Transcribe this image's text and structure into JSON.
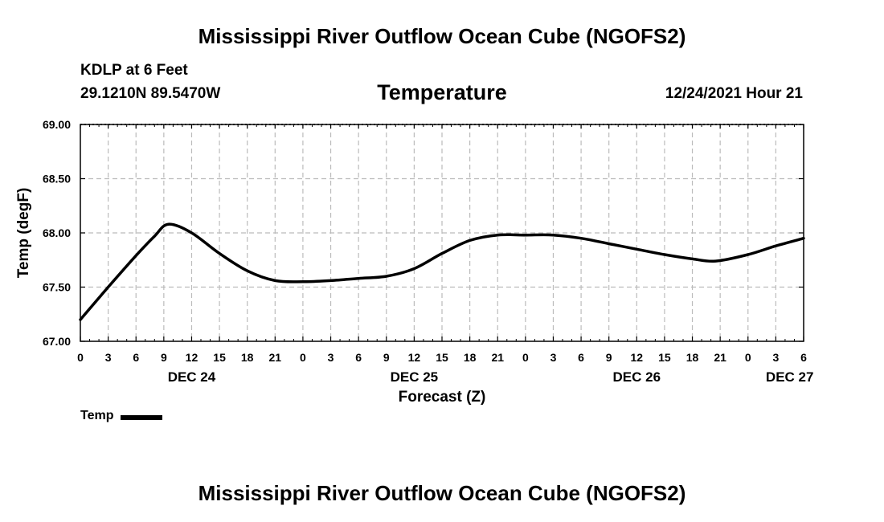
{
  "header": {
    "title": "Mississippi River Outflow Ocean Cube (NGOFS2)",
    "station": "KDLP at 6 Feet",
    "coords": "29.1210N  89.5470W",
    "subtitle": "Temperature",
    "datetime": "12/24/2021 Hour 21"
  },
  "footer": {
    "title": "Mississippi River Outflow Ocean Cube (NGOFS2)"
  },
  "legend": {
    "label": "Temp"
  },
  "colors": {
    "line": "#000000",
    "grid": "#bbbbbb",
    "axis": "#000000"
  },
  "chart_data": {
    "type": "line",
    "title": "Temperature",
    "xlabel": "Forecast (Z)",
    "ylabel": "Temp (degF)",
    "ylim": [
      67.0,
      69.0
    ],
    "yticks": [
      "67.00",
      "67.50",
      "68.00",
      "68.50",
      "69.00"
    ],
    "xlim": [
      0,
      78
    ],
    "xtick_labels": [
      "0",
      "3",
      "6",
      "9",
      "12",
      "15",
      "18",
      "21",
      "0",
      "3",
      "6",
      "9",
      "12",
      "15",
      "18",
      "21",
      "0",
      "3",
      "6",
      "9",
      "12",
      "15",
      "18",
      "21",
      "0",
      "3",
      "6"
    ],
    "day_labels": [
      {
        "label": "DEC 24",
        "hour": 12
      },
      {
        "label": "DEC 25",
        "hour": 36
      },
      {
        "label": "DEC 26",
        "hour": 60
      },
      {
        "label": "DEC 27",
        "hour": 76.5
      }
    ],
    "grid": true,
    "series": [
      {
        "name": "Temp",
        "x": [
          0,
          3,
          6,
          8,
          9.5,
          12,
          15,
          18,
          21,
          24,
          27,
          30,
          33,
          36,
          39,
          42,
          45,
          48,
          51,
          54,
          57,
          60,
          63,
          66,
          68.5,
          72,
          75,
          78
        ],
        "values": [
          67.2,
          67.5,
          67.79,
          67.97,
          68.08,
          68.0,
          67.81,
          67.65,
          67.56,
          67.55,
          67.56,
          67.58,
          67.6,
          67.67,
          67.81,
          67.93,
          67.98,
          67.98,
          67.98,
          67.95,
          67.9,
          67.85,
          67.8,
          67.76,
          67.74,
          67.8,
          67.88,
          67.95
        ]
      }
    ]
  }
}
